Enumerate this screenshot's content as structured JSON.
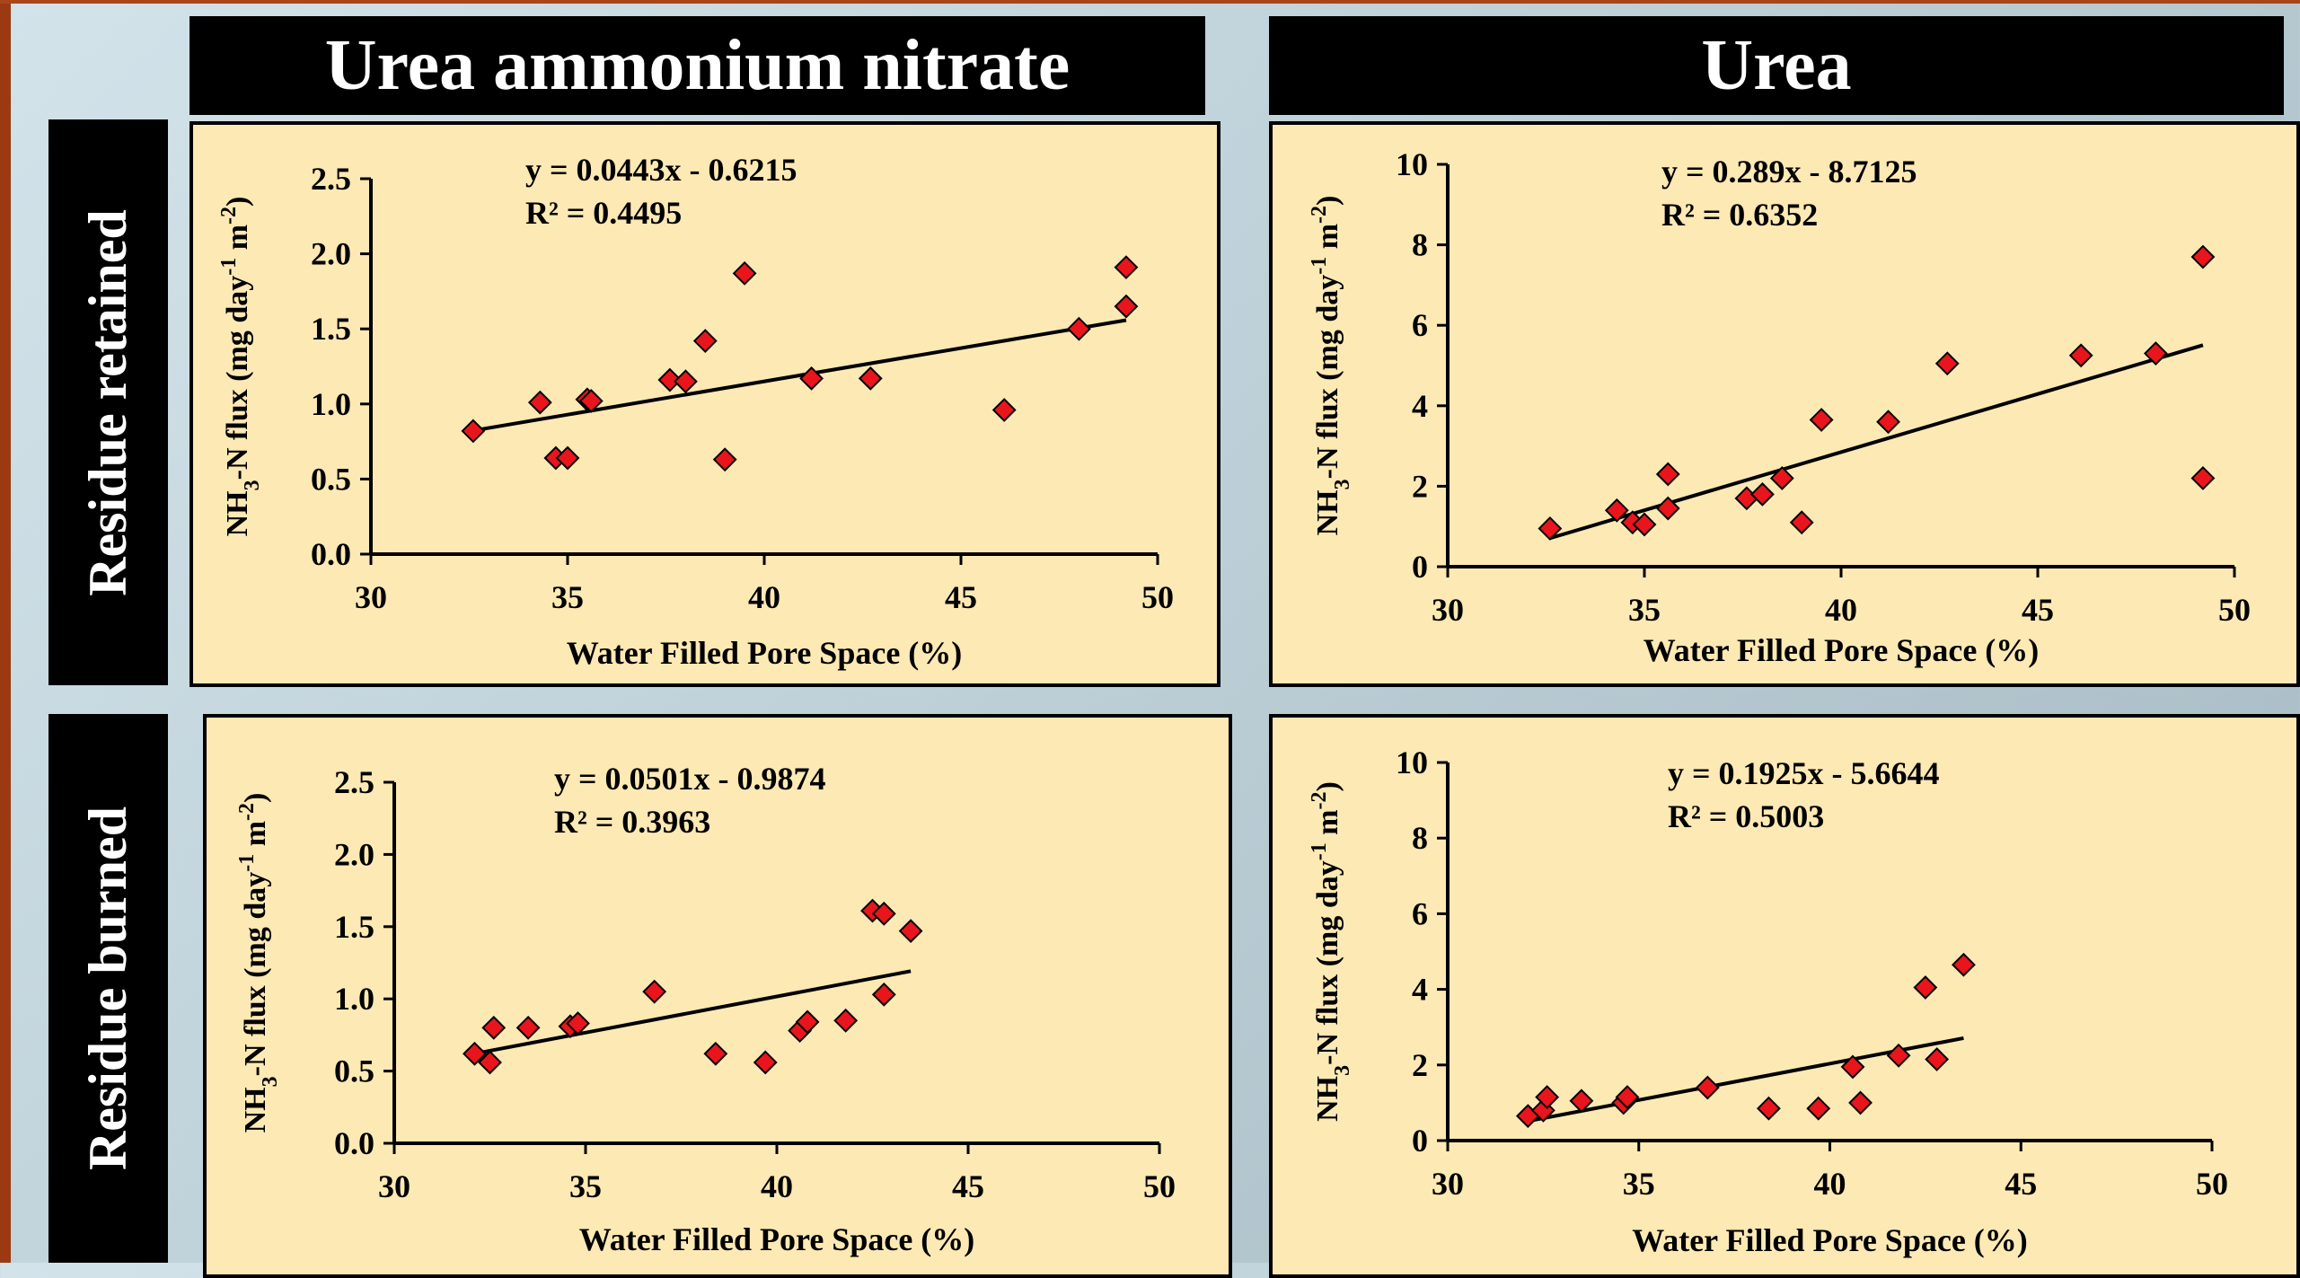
{
  "column_headers": [
    "Urea ammonium nitrate",
    "Urea"
  ],
  "row_headers": [
    "Residue retained",
    "Residue burned"
  ],
  "colors": {
    "marker": "#e8161c",
    "panel_bg": "#fde9b4",
    "header_bg": "#000000",
    "header_text": "#ffffff"
  },
  "chart_data": [
    {
      "id": "uan-retained",
      "type": "scatter",
      "xlabel": "Water Filled Pore Space (%)",
      "ylabel": "NH3-N flux (mg day-1 m-2)",
      "xlim": [
        30,
        50
      ],
      "ylim": [
        0,
        2.5
      ],
      "xticks": [
        "30",
        "35",
        "40",
        "45",
        "50"
      ],
      "yticks": [
        "0.0",
        "0.5",
        "1.0",
        "1.5",
        "2.0",
        "2.5"
      ],
      "equation": "y = 0.0443x - 0.6215",
      "r2": "R² = 0.4495",
      "trendline": {
        "slope": 0.0443,
        "intercept": -0.6215,
        "x_range": [
          32.6,
          49.2
        ]
      },
      "points": [
        [
          32.6,
          0.82
        ],
        [
          34.3,
          1.01
        ],
        [
          34.7,
          0.64
        ],
        [
          35.0,
          0.64
        ],
        [
          35.5,
          1.03
        ],
        [
          35.6,
          1.02
        ],
        [
          37.6,
          1.16
        ],
        [
          38.0,
          1.15
        ],
        [
          38.5,
          1.42
        ],
        [
          39.0,
          0.63
        ],
        [
          39.5,
          1.87
        ],
        [
          41.2,
          1.17
        ],
        [
          42.7,
          1.17
        ],
        [
          46.1,
          0.96
        ],
        [
          48.0,
          1.5
        ],
        [
          49.2,
          1.65
        ],
        [
          49.2,
          1.91
        ]
      ]
    },
    {
      "id": "urea-retained",
      "type": "scatter",
      "xlabel": "Water Filled Pore Space (%)",
      "ylabel": "NH3-N flux (mg day-1 m-2)",
      "xlim": [
        30,
        50
      ],
      "ylim": [
        0,
        10
      ],
      "xticks": [
        "30",
        "35",
        "40",
        "45",
        "50"
      ],
      "yticks": [
        "0",
        "2",
        "4",
        "6",
        "8",
        "10"
      ],
      "equation": "y = 0.289x - 8.7125",
      "r2": "R² = 0.6352",
      "trendline": {
        "slope": 0.289,
        "intercept": -8.7125,
        "x_range": [
          32.6,
          49.2
        ]
      },
      "points": [
        [
          32.6,
          0.95
        ],
        [
          34.3,
          1.4
        ],
        [
          34.7,
          1.1
        ],
        [
          35.0,
          1.05
        ],
        [
          35.6,
          2.3
        ],
        [
          35.6,
          1.45
        ],
        [
          37.6,
          1.7
        ],
        [
          38.0,
          1.8
        ],
        [
          38.5,
          2.2
        ],
        [
          39.0,
          1.1
        ],
        [
          39.5,
          3.65
        ],
        [
          41.2,
          3.6
        ],
        [
          42.7,
          5.05
        ],
        [
          46.1,
          5.25
        ],
        [
          48.0,
          5.3
        ],
        [
          49.2,
          7.7
        ],
        [
          49.2,
          2.2
        ]
      ]
    },
    {
      "id": "uan-burned",
      "type": "scatter",
      "xlabel": "Water Filled Pore Space (%)",
      "ylabel": "NH3-N flux (mg day-1 m-2)",
      "xlim": [
        30,
        50
      ],
      "ylim": [
        0,
        2.5
      ],
      "xticks": [
        "30",
        "35",
        "40",
        "45",
        "50"
      ],
      "yticks": [
        "0.0",
        "0.5",
        "1.0",
        "1.5",
        "2.0",
        "2.5"
      ],
      "equation": "y = 0.0501x - 0.9874",
      "r2": "R² = 0.3963",
      "trendline": {
        "slope": 0.0501,
        "intercept": -0.9874,
        "x_range": [
          32.1,
          43.5
        ]
      },
      "points": [
        [
          32.1,
          0.62
        ],
        [
          32.5,
          0.56
        ],
        [
          32.6,
          0.8
        ],
        [
          33.5,
          0.8
        ],
        [
          34.6,
          0.81
        ],
        [
          34.8,
          0.83
        ],
        [
          36.8,
          1.05
        ],
        [
          38.4,
          0.62
        ],
        [
          39.7,
          0.56
        ],
        [
          40.6,
          0.78
        ],
        [
          40.8,
          0.84
        ],
        [
          41.8,
          0.85
        ],
        [
          42.5,
          1.61
        ],
        [
          42.8,
          1.59
        ],
        [
          42.8,
          1.03
        ],
        [
          43.5,
          1.47
        ]
      ]
    },
    {
      "id": "urea-burned",
      "type": "scatter",
      "xlabel": "Water Filled Pore Space (%)",
      "ylabel": "NH3-N flux (mg day-1 m-2)",
      "xlim": [
        30,
        50
      ],
      "ylim": [
        0,
        10
      ],
      "xticks": [
        "30",
        "35",
        "40",
        "45",
        "50"
      ],
      "yticks": [
        "0",
        "2",
        "4",
        "6",
        "8",
        "10"
      ],
      "equation": "y = 0.1925x - 5.6644",
      "r2": "R² = 0.5003",
      "trendline": {
        "slope": 0.1925,
        "intercept": -5.6644,
        "x_range": [
          32.1,
          43.5
        ]
      },
      "points": [
        [
          32.1,
          0.65
        ],
        [
          32.5,
          0.8
        ],
        [
          32.6,
          1.15
        ],
        [
          33.5,
          1.05
        ],
        [
          34.6,
          1.0
        ],
        [
          34.7,
          1.15
        ],
        [
          36.8,
          1.4
        ],
        [
          38.4,
          0.85
        ],
        [
          39.7,
          0.85
        ],
        [
          40.6,
          1.95
        ],
        [
          40.8,
          1.0
        ],
        [
          41.8,
          2.25
        ],
        [
          42.5,
          4.05
        ],
        [
          42.8,
          2.15
        ],
        [
          43.5,
          4.65
        ]
      ]
    }
  ]
}
